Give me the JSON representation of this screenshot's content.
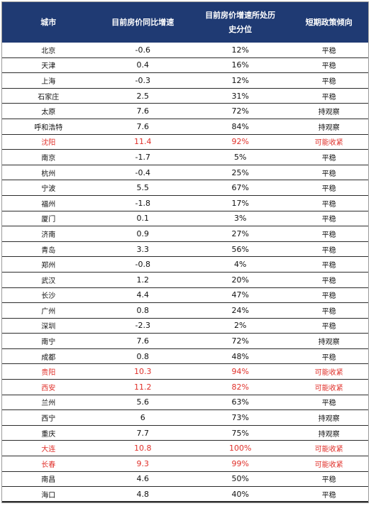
{
  "headers": {
    "city": "城市",
    "yoy": "目前房价同比增速",
    "percentile": "目前房价增速所处历史分位",
    "policy": "短期政策倾向"
  },
  "rows": [
    {
      "city": "北京",
      "yoy": "-0.6",
      "percentile": "12%",
      "policy": "平稳",
      "highlight": false
    },
    {
      "city": "天津",
      "yoy": "0.4",
      "percentile": "16%",
      "policy": "平稳",
      "highlight": false
    },
    {
      "city": "上海",
      "yoy": "-0.3",
      "percentile": "12%",
      "policy": "平稳",
      "highlight": false
    },
    {
      "city": "石家庄",
      "yoy": "2.5",
      "percentile": "31%",
      "policy": "平稳",
      "highlight": false
    },
    {
      "city": "太原",
      "yoy": "7.6",
      "percentile": "72%",
      "policy": "持观察",
      "highlight": false
    },
    {
      "city": "呼和浩特",
      "yoy": "7.6",
      "percentile": "84%",
      "policy": "持观察",
      "highlight": false
    },
    {
      "city": "沈阳",
      "yoy": "11.4",
      "percentile": "92%",
      "policy": "可能收紧",
      "highlight": true
    },
    {
      "city": "南京",
      "yoy": "-1.7",
      "percentile": "5%",
      "policy": "平稳",
      "highlight": false
    },
    {
      "city": "杭州",
      "yoy": "-0.4",
      "percentile": "25%",
      "policy": "平稳",
      "highlight": false
    },
    {
      "city": "宁波",
      "yoy": "5.5",
      "percentile": "67%",
      "policy": "平稳",
      "highlight": false
    },
    {
      "city": "福州",
      "yoy": "-1.8",
      "percentile": "17%",
      "policy": "平稳",
      "highlight": false
    },
    {
      "city": "厦门",
      "yoy": "0.1",
      "percentile": "3%",
      "policy": "平稳",
      "highlight": false
    },
    {
      "city": "济南",
      "yoy": "0.9",
      "percentile": "27%",
      "policy": "平稳",
      "highlight": false
    },
    {
      "city": "青岛",
      "yoy": "3.3",
      "percentile": "56%",
      "policy": "平稳",
      "highlight": false
    },
    {
      "city": "郑州",
      "yoy": "-0.8",
      "percentile": "4%",
      "policy": "平稳",
      "highlight": false
    },
    {
      "city": "武汉",
      "yoy": "1.2",
      "percentile": "20%",
      "policy": "平稳",
      "highlight": false
    },
    {
      "city": "长沙",
      "yoy": "4.4",
      "percentile": "47%",
      "policy": "平稳",
      "highlight": false
    },
    {
      "city": "广州",
      "yoy": "0.8",
      "percentile": "24%",
      "policy": "平稳",
      "highlight": false
    },
    {
      "city": "深圳",
      "yoy": "-2.3",
      "percentile": "2%",
      "policy": "平稳",
      "highlight": false
    },
    {
      "city": "南宁",
      "yoy": "7.6",
      "percentile": "72%",
      "policy": "持观察",
      "highlight": false
    },
    {
      "city": "成都",
      "yoy": "0.8",
      "percentile": "48%",
      "policy": "平稳",
      "highlight": false
    },
    {
      "city": "贵阳",
      "yoy": "10.3",
      "percentile": "94%",
      "policy": "可能收紧",
      "highlight": true
    },
    {
      "city": "西安",
      "yoy": "11.2",
      "percentile": "82%",
      "policy": "可能收紧",
      "highlight": true
    },
    {
      "city": "兰州",
      "yoy": "5.6",
      "percentile": "63%",
      "policy": "平稳",
      "highlight": false
    },
    {
      "city": "西宁",
      "yoy": "6",
      "percentile": "73%",
      "policy": "持观察",
      "highlight": false
    },
    {
      "city": "重庆",
      "yoy": "7.7",
      "percentile": "75%",
      "policy": "持观察",
      "highlight": false
    },
    {
      "city": "大连",
      "yoy": "10.8",
      "percentile": "100%",
      "policy": "可能收紧",
      "highlight": true
    },
    {
      "city": "长春",
      "yoy": "9.3",
      "percentile": "99%",
      "policy": "可能收紧",
      "highlight": true
    },
    {
      "city": "南昌",
      "yoy": "4.6",
      "percentile": "50%",
      "policy": "平稳",
      "highlight": false
    },
    {
      "city": "海口",
      "yoy": "4.8",
      "percentile": "40%",
      "policy": "平稳",
      "highlight": false
    }
  ]
}
